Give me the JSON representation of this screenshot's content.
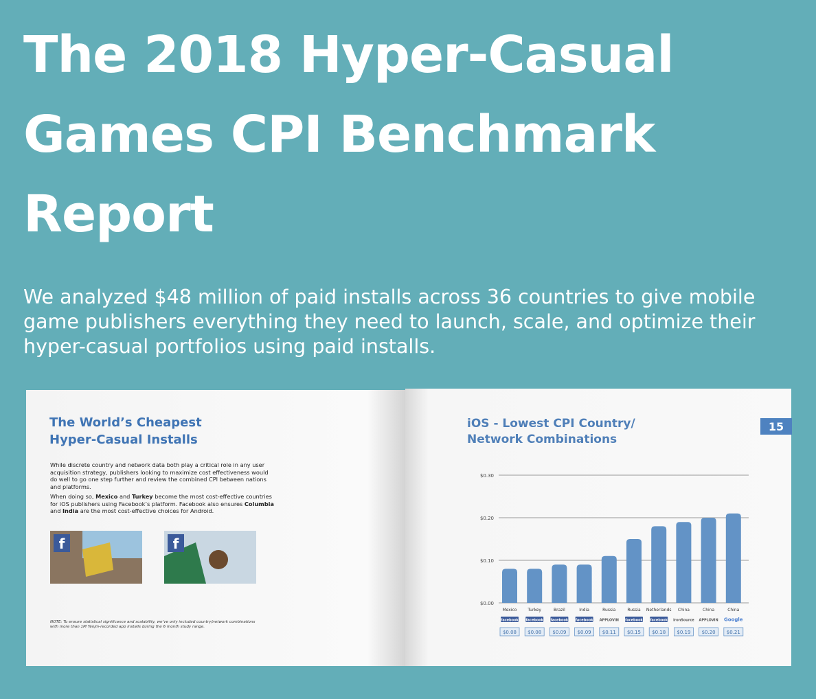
{
  "header": {
    "title": "The 2018 Hyper-Casual Games CPI Benchmark Report",
    "subtitle": "We analyzed $48 million of paid installs across 36 countries to give mobile game publishers everything they need to launch, scale, and optimize their hyper-casual portfolios using paid installs."
  },
  "left_page": {
    "title": "The World’s Cheapest Hyper-Casual Installs",
    "paragraphs": [
      [
        {
          "text": "While discrete country and network data both play a critical role in any user acquisition strategy, publishers looking to maximize cost effectiveness would do well to go one step further and review the combined CPI between nations and platforms.",
          "bold": false
        }
      ],
      [
        {
          "text": "When doing so, ",
          "bold": false
        },
        {
          "text": "Mexico",
          "bold": true
        },
        {
          "text": " and ",
          "bold": false
        },
        {
          "text": "Turkey",
          "bold": true
        },
        {
          "text": " become the most cost-effective countries for iOS publishers using Facebook’s platform. Facebook also ensures ",
          "bold": false
        },
        {
          "text": "Columbia",
          "bold": true
        },
        {
          "text": " and ",
          "bold": false
        },
        {
          "text": "India",
          "bold": true
        },
        {
          "text": " are the most cost-effective choices for Android.",
          "bold": false
        }
      ]
    ],
    "note": "NOTE: To ensure statistical significance and scalability, we’ve only included country/network combinations with more than 1M Tenjin-recorded app installs during the 6 month study range."
  },
  "right_page": {
    "page_number": "15",
    "chart_data": {
      "type": "bar",
      "title": "iOS - Lowest CPI Country/ Network Combinations",
      "categories": [
        "Mexico",
        "Turkey",
        "Brazil",
        "India",
        "Russia",
        "Russia",
        "Netherlands",
        "China",
        "China",
        "China"
      ],
      "networks": [
        "facebook",
        "facebook",
        "facebook",
        "facebook",
        "APPLOVIN",
        "facebook",
        "facebook",
        "ironSource",
        "APPLOVIN",
        "Google"
      ],
      "values": [
        0.08,
        0.08,
        0.09,
        0.09,
        0.11,
        0.15,
        0.18,
        0.19,
        0.2,
        0.21
      ],
      "value_labels": [
        "$0.08",
        "$0.08",
        "$0.09",
        "$0.09",
        "$0.11",
        "$0.15",
        "$0.18",
        "$0.19",
        "$0.20",
        "$0.21"
      ],
      "color": "#6393c6",
      "ylim": [
        0,
        0.3
      ],
      "yticks": [
        {
          "value": 0,
          "label": "$0.00"
        },
        {
          "value": 0.1,
          "label": "$0.10"
        },
        {
          "value": 0.2,
          "label": "$0.20"
        },
        {
          "value": 0.3,
          "label": "$0.30"
        }
      ],
      "grid": true
    }
  }
}
